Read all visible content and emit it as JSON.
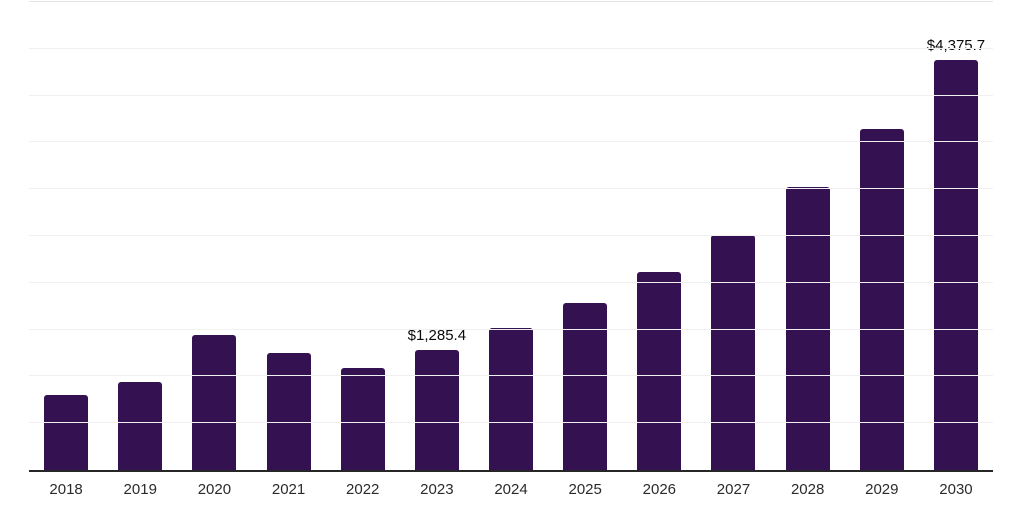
{
  "chart_data": {
    "type": "bar",
    "title": "",
    "categories": [
      "2018",
      "2019",
      "2020",
      "2021",
      "2022",
      "2023",
      "2024",
      "2025",
      "2026",
      "2027",
      "2028",
      "2029",
      "2030"
    ],
    "values": [
      800,
      940,
      1440,
      1245,
      1095,
      1285.4,
      1515,
      1785,
      2120,
      2515,
      3020,
      3640,
      4375.7
    ],
    "data_labels": [
      "",
      "",
      "",
      "",
      "",
      "$1,285.4",
      "",
      "",
      "",
      "",
      "",
      "",
      "$4,375.7"
    ],
    "xlabel": "",
    "ylabel": "",
    "ylim": [
      0,
      5000
    ],
    "gridline_step": 500,
    "grid": "horizontal",
    "y_axis_labels_visible": false,
    "legend": "none",
    "colors": {
      "bar": "#341150",
      "axis_line": "#262626",
      "gridline": "#f0f0f0",
      "top_gridline": "#e4e4e4",
      "tick_label": "#2b2b2b",
      "value_label": "#0a0a0a",
      "background": "#ffffff"
    }
  }
}
